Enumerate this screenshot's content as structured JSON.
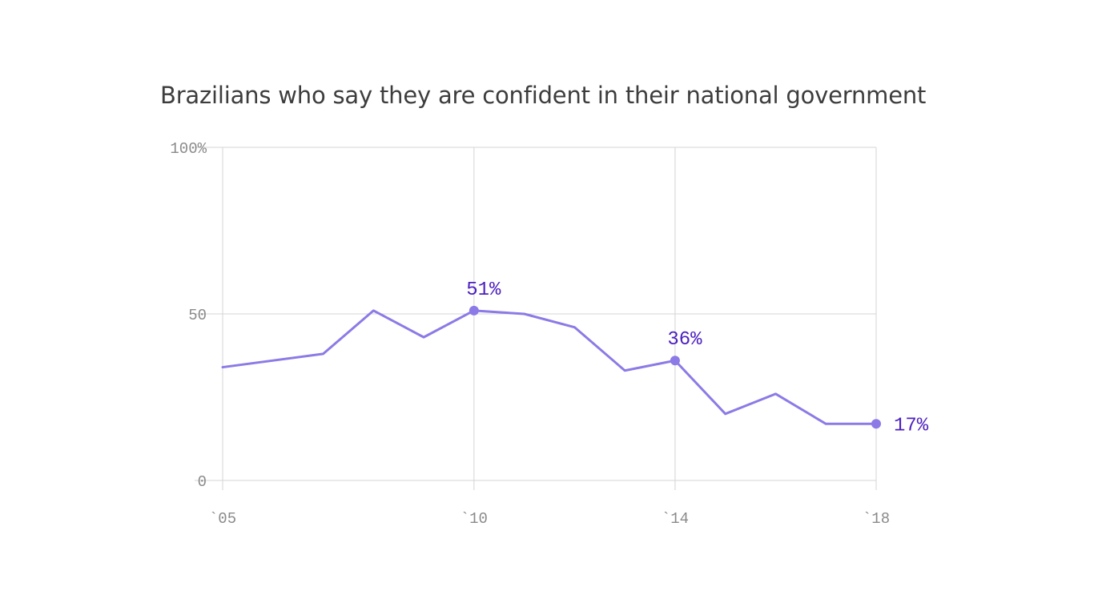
{
  "chart_data": {
    "type": "line",
    "title": "Brazilians who say they are confident in their national government",
    "xlabel": "",
    "ylabel": "",
    "xlim": [
      2005,
      2018
    ],
    "ylim": [
      0,
      100
    ],
    "x_ticks": [
      {
        "value": 2005,
        "label": "`05"
      },
      {
        "value": 2010,
        "label": "`10"
      },
      {
        "value": 2014,
        "label": "`14"
      },
      {
        "value": 2018,
        "label": "`18"
      }
    ],
    "y_ticks": [
      {
        "value": 0,
        "label": "0"
      },
      {
        "value": 50,
        "label": "50"
      },
      {
        "value": 100,
        "label": "100%"
      }
    ],
    "grid": true,
    "series": [
      {
        "color": "#8c7ae6",
        "x": [
          2005,
          2007,
          2008,
          2009,
          2010,
          2011,
          2012,
          2013,
          2014,
          2015,
          2016,
          2017,
          2018
        ],
        "y": [
          34,
          38,
          51,
          43,
          51,
          50,
          46,
          33,
          36,
          20,
          26,
          17,
          17
        ]
      }
    ],
    "annotations": [
      {
        "x": 2010,
        "y": 51,
        "label": "51%"
      },
      {
        "x": 2014,
        "y": 36,
        "label": "36%"
      },
      {
        "x": 2018,
        "y": 17,
        "label": "17%"
      }
    ],
    "label_color": "#4b1fbf"
  }
}
